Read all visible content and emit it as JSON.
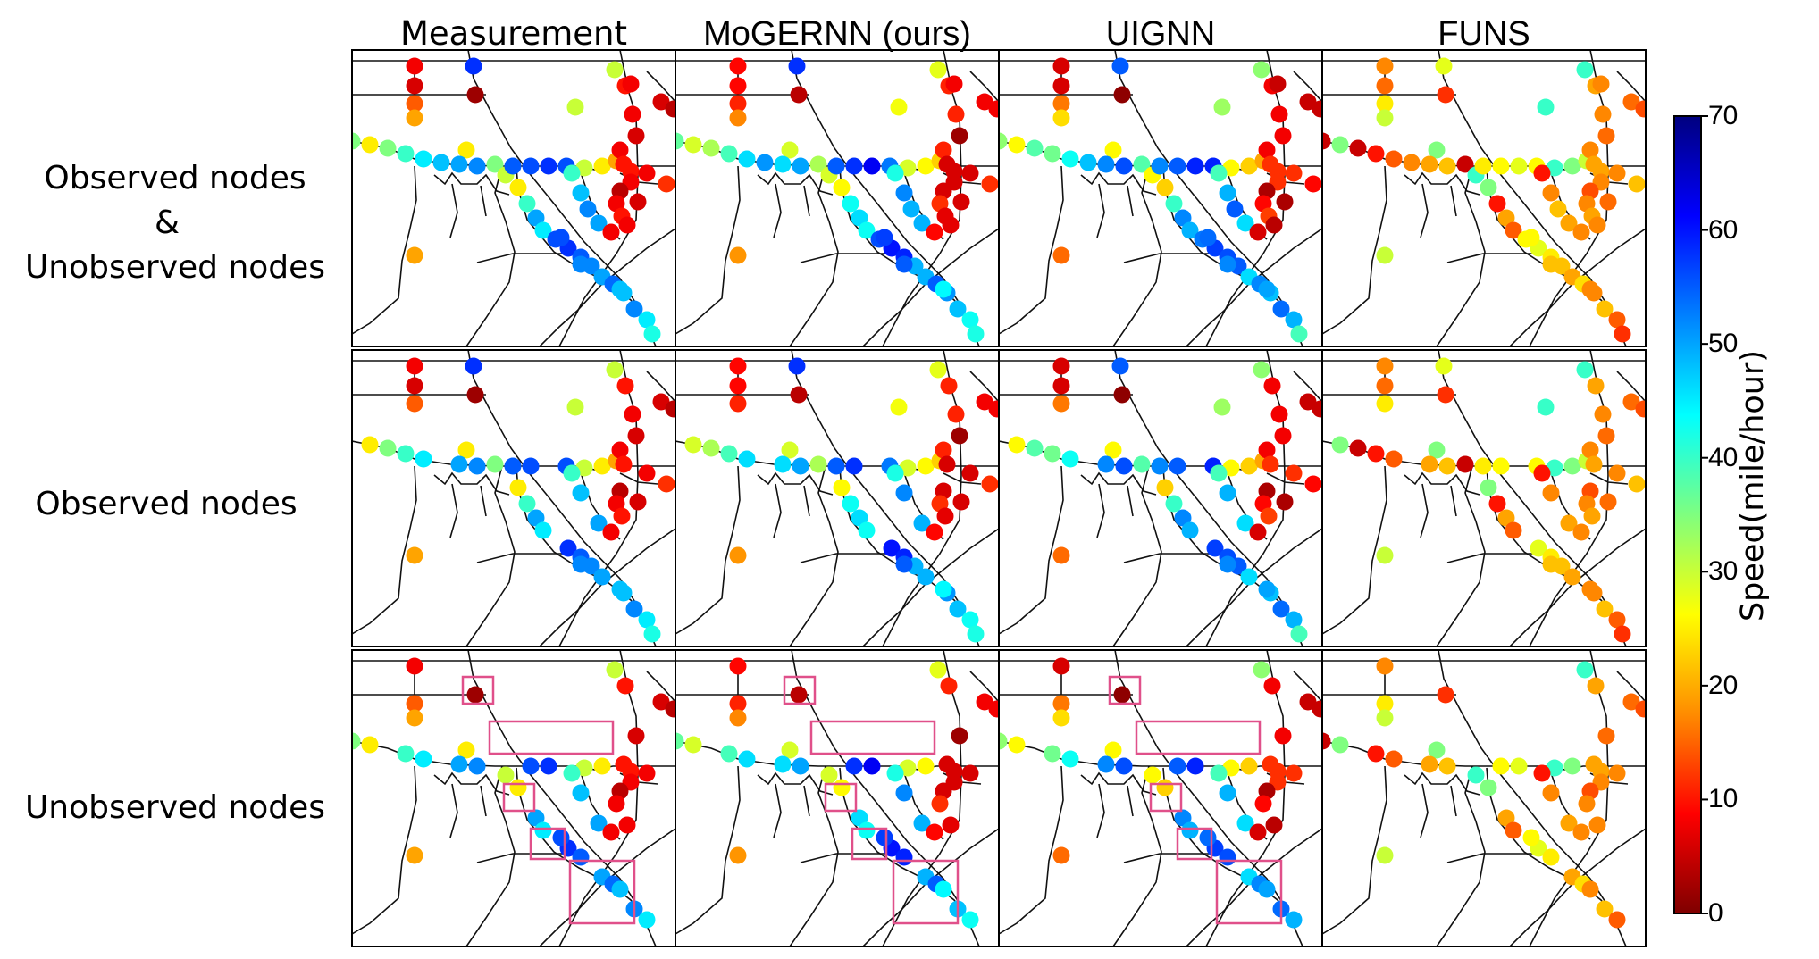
{
  "columns": [
    {
      "title": "Measurement"
    },
    {
      "title": "MoGERNN (ours)"
    },
    {
      "title": "UIGNN"
    },
    {
      "title": "FUNS"
    }
  ],
  "rows": [
    {
      "label_lines": [
        "Observed nodes",
        "&",
        "Unobserved nodes"
      ]
    },
    {
      "label_lines": [
        "Observed nodes"
      ]
    },
    {
      "label_lines": [
        "Unobserved nodes"
      ]
    }
  ],
  "colorbar": {
    "label": "Speed(mile/hour)",
    "min": 0,
    "max": 70,
    "ticks": [
      "0",
      "10",
      "20",
      "30",
      "40",
      "50",
      "60",
      "70"
    ],
    "colormap": "jet",
    "colors": [
      "#7f0000",
      "#ff0000",
      "#ff8c00",
      "#ffff00",
      "#7fff7f",
      "#00ffff",
      "#0080ff",
      "#0000ff",
      "#00007f"
    ]
  },
  "highlight_color": "#e0508a",
  "line_color": "#111111"
}
